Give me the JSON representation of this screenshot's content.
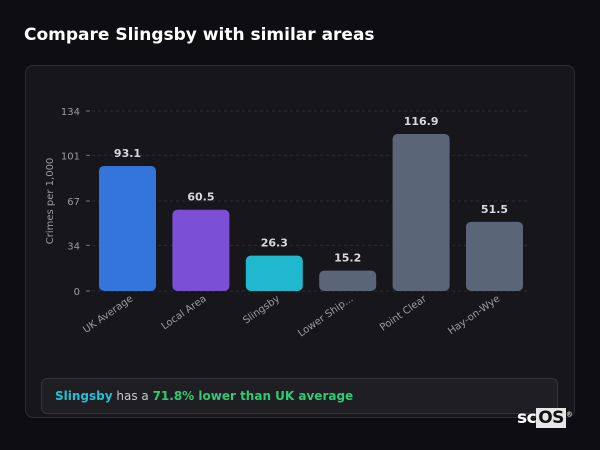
{
  "header": {
    "title": "Compare Slingsby with similar areas"
  },
  "chart_data": {
    "type": "bar",
    "categories": [
      "UK Average",
      "Local Area",
      "Slingsby",
      "Lower Ship...",
      "Point Clear",
      "Hay-on-Wye"
    ],
    "values": [
      93.1,
      60.5,
      26.3,
      15.2,
      116.9,
      51.5
    ],
    "colors": [
      "#3375db",
      "#7b4fd6",
      "#1fb8cf",
      "#5b6578",
      "#5b6578",
      "#5b6578"
    ],
    "ylabel": "Crimes per 1,000",
    "xlabel": "",
    "yticks": [
      0,
      34,
      67,
      101,
      134
    ],
    "ylim": [
      0,
      134
    ],
    "grid": true,
    "data_labels": [
      "93.1",
      "60.5",
      "26.3",
      "15.2",
      "116.9",
      "51.5"
    ]
  },
  "footer": {
    "place": "Slingsby",
    "middle": " has a ",
    "comparison": "71.8% lower than UK average"
  },
  "logo": {
    "text_a": "sc",
    "text_b": "OS",
    "mark": "®"
  }
}
